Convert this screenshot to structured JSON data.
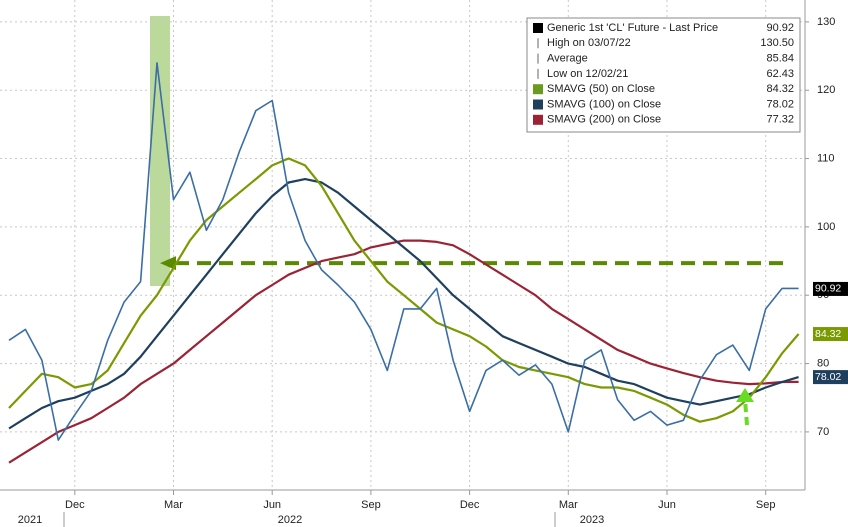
{
  "chart_data": {
    "type": "line",
    "categories": [
      null,
      null,
      null,
      null,
      "Dec",
      null,
      null,
      null,
      null,
      null,
      "Mar",
      null,
      null,
      null,
      null,
      null,
      "Jun",
      null,
      null,
      null,
      null,
      null,
      "Sep",
      null,
      null,
      null,
      null,
      null,
      "Dec",
      null,
      null,
      null,
      null,
      null,
      "Mar",
      null,
      null,
      null,
      null,
      null,
      "Jun",
      null,
      null,
      null,
      null,
      null,
      "Sep",
      null,
      null
    ],
    "x_groups": [
      "2021",
      "2022",
      "2023"
    ],
    "ylim": [
      61.5,
      133.2
    ],
    "yticks": [
      70,
      80,
      90,
      100,
      110,
      120,
      130
    ],
    "grid": true,
    "legend": "upper right",
    "reference_line": {
      "value": 94.7,
      "color": "#5a8a00"
    },
    "series": [
      {
        "name": "Generic 1st 'CL' Future - Last Price",
        "color": "#3a6ea5",
        "legend_color": "#000000",
        "last_value": 90.92,
        "tag_color": "#000000",
        "values": [
          83.4,
          85,
          80.5,
          68.8,
          72.5,
          76,
          83.4,
          89,
          92,
          124,
          104,
          108,
          99.5,
          104,
          111,
          117,
          118.5,
          105,
          98,
          93.7,
          91.5,
          89,
          85,
          79,
          88,
          88,
          91,
          80.5,
          73,
          79,
          80.5,
          78.3,
          79.8,
          77,
          70,
          80.5,
          82,
          74.7,
          71.7,
          73,
          71,
          71.7,
          77.6,
          81.3,
          82.7,
          79,
          88,
          91,
          91
        ]
      },
      {
        "name": "SMAVG (50)  on Close",
        "color": "#7a9a01",
        "legend_color": "#6a9a1f",
        "last_value": 84.32,
        "tag_color": "#7a9a01",
        "values": [
          73.5,
          76,
          78.5,
          78,
          76.5,
          77,
          79,
          83,
          87,
          90,
          94,
          98,
          101,
          103,
          105,
          107,
          109,
          110,
          109,
          106,
          102,
          98,
          95,
          92,
          90,
          88,
          86,
          85,
          84,
          82.5,
          80.5,
          79.5,
          79,
          78.5,
          78,
          77,
          76.5,
          76.5,
          76,
          75,
          74,
          72.5,
          71.5,
          72,
          73,
          75,
          78,
          81.5,
          84.32
        ]
      },
      {
        "name": "SMAVG (100)  on Close",
        "color": "#1f3f5f",
        "legend_color": "#1f3f5f",
        "last_value": 78.02,
        "tag_color": "#1f3f5f",
        "values": [
          70.5,
          72,
          73.5,
          74.5,
          75,
          76,
          77,
          78.5,
          81,
          84,
          87,
          90,
          93,
          96,
          99,
          102,
          104.5,
          106.5,
          107,
          106.5,
          105,
          103,
          101,
          99,
          97,
          95,
          92.5,
          90,
          88,
          86,
          84,
          83,
          82,
          81,
          80,
          79.5,
          78.5,
          77.5,
          77,
          76,
          75,
          74.5,
          74,
          74.5,
          75,
          75.5,
          76.5,
          77.3,
          78.02
        ]
      },
      {
        "name": "SMAVG (200)  on Close",
        "color": "#9b2335",
        "legend_color": "#9b2335",
        "last_value": 77.32,
        "values": [
          65.5,
          67,
          68.5,
          70,
          71,
          72,
          73.5,
          75,
          77,
          78.5,
          80,
          82,
          84,
          86,
          88,
          90,
          91.5,
          93,
          94,
          95,
          95.5,
          96,
          97,
          97.5,
          98,
          98,
          97.8,
          97.3,
          96,
          94.5,
          93,
          91.5,
          90,
          88,
          86.5,
          85,
          83.5,
          82,
          81,
          80,
          79.3,
          78.6,
          78,
          77.5,
          77.2,
          77,
          77.1,
          77.3,
          77.32
        ]
      }
    ],
    "stats": [
      {
        "label": "High on 03/07/22",
        "value": 130.5,
        "value_label": "130.50"
      },
      {
        "label": "Average",
        "value": 85.84
      },
      {
        "label": "Low on 12/02/21",
        "value": 62.43
      }
    ]
  }
}
